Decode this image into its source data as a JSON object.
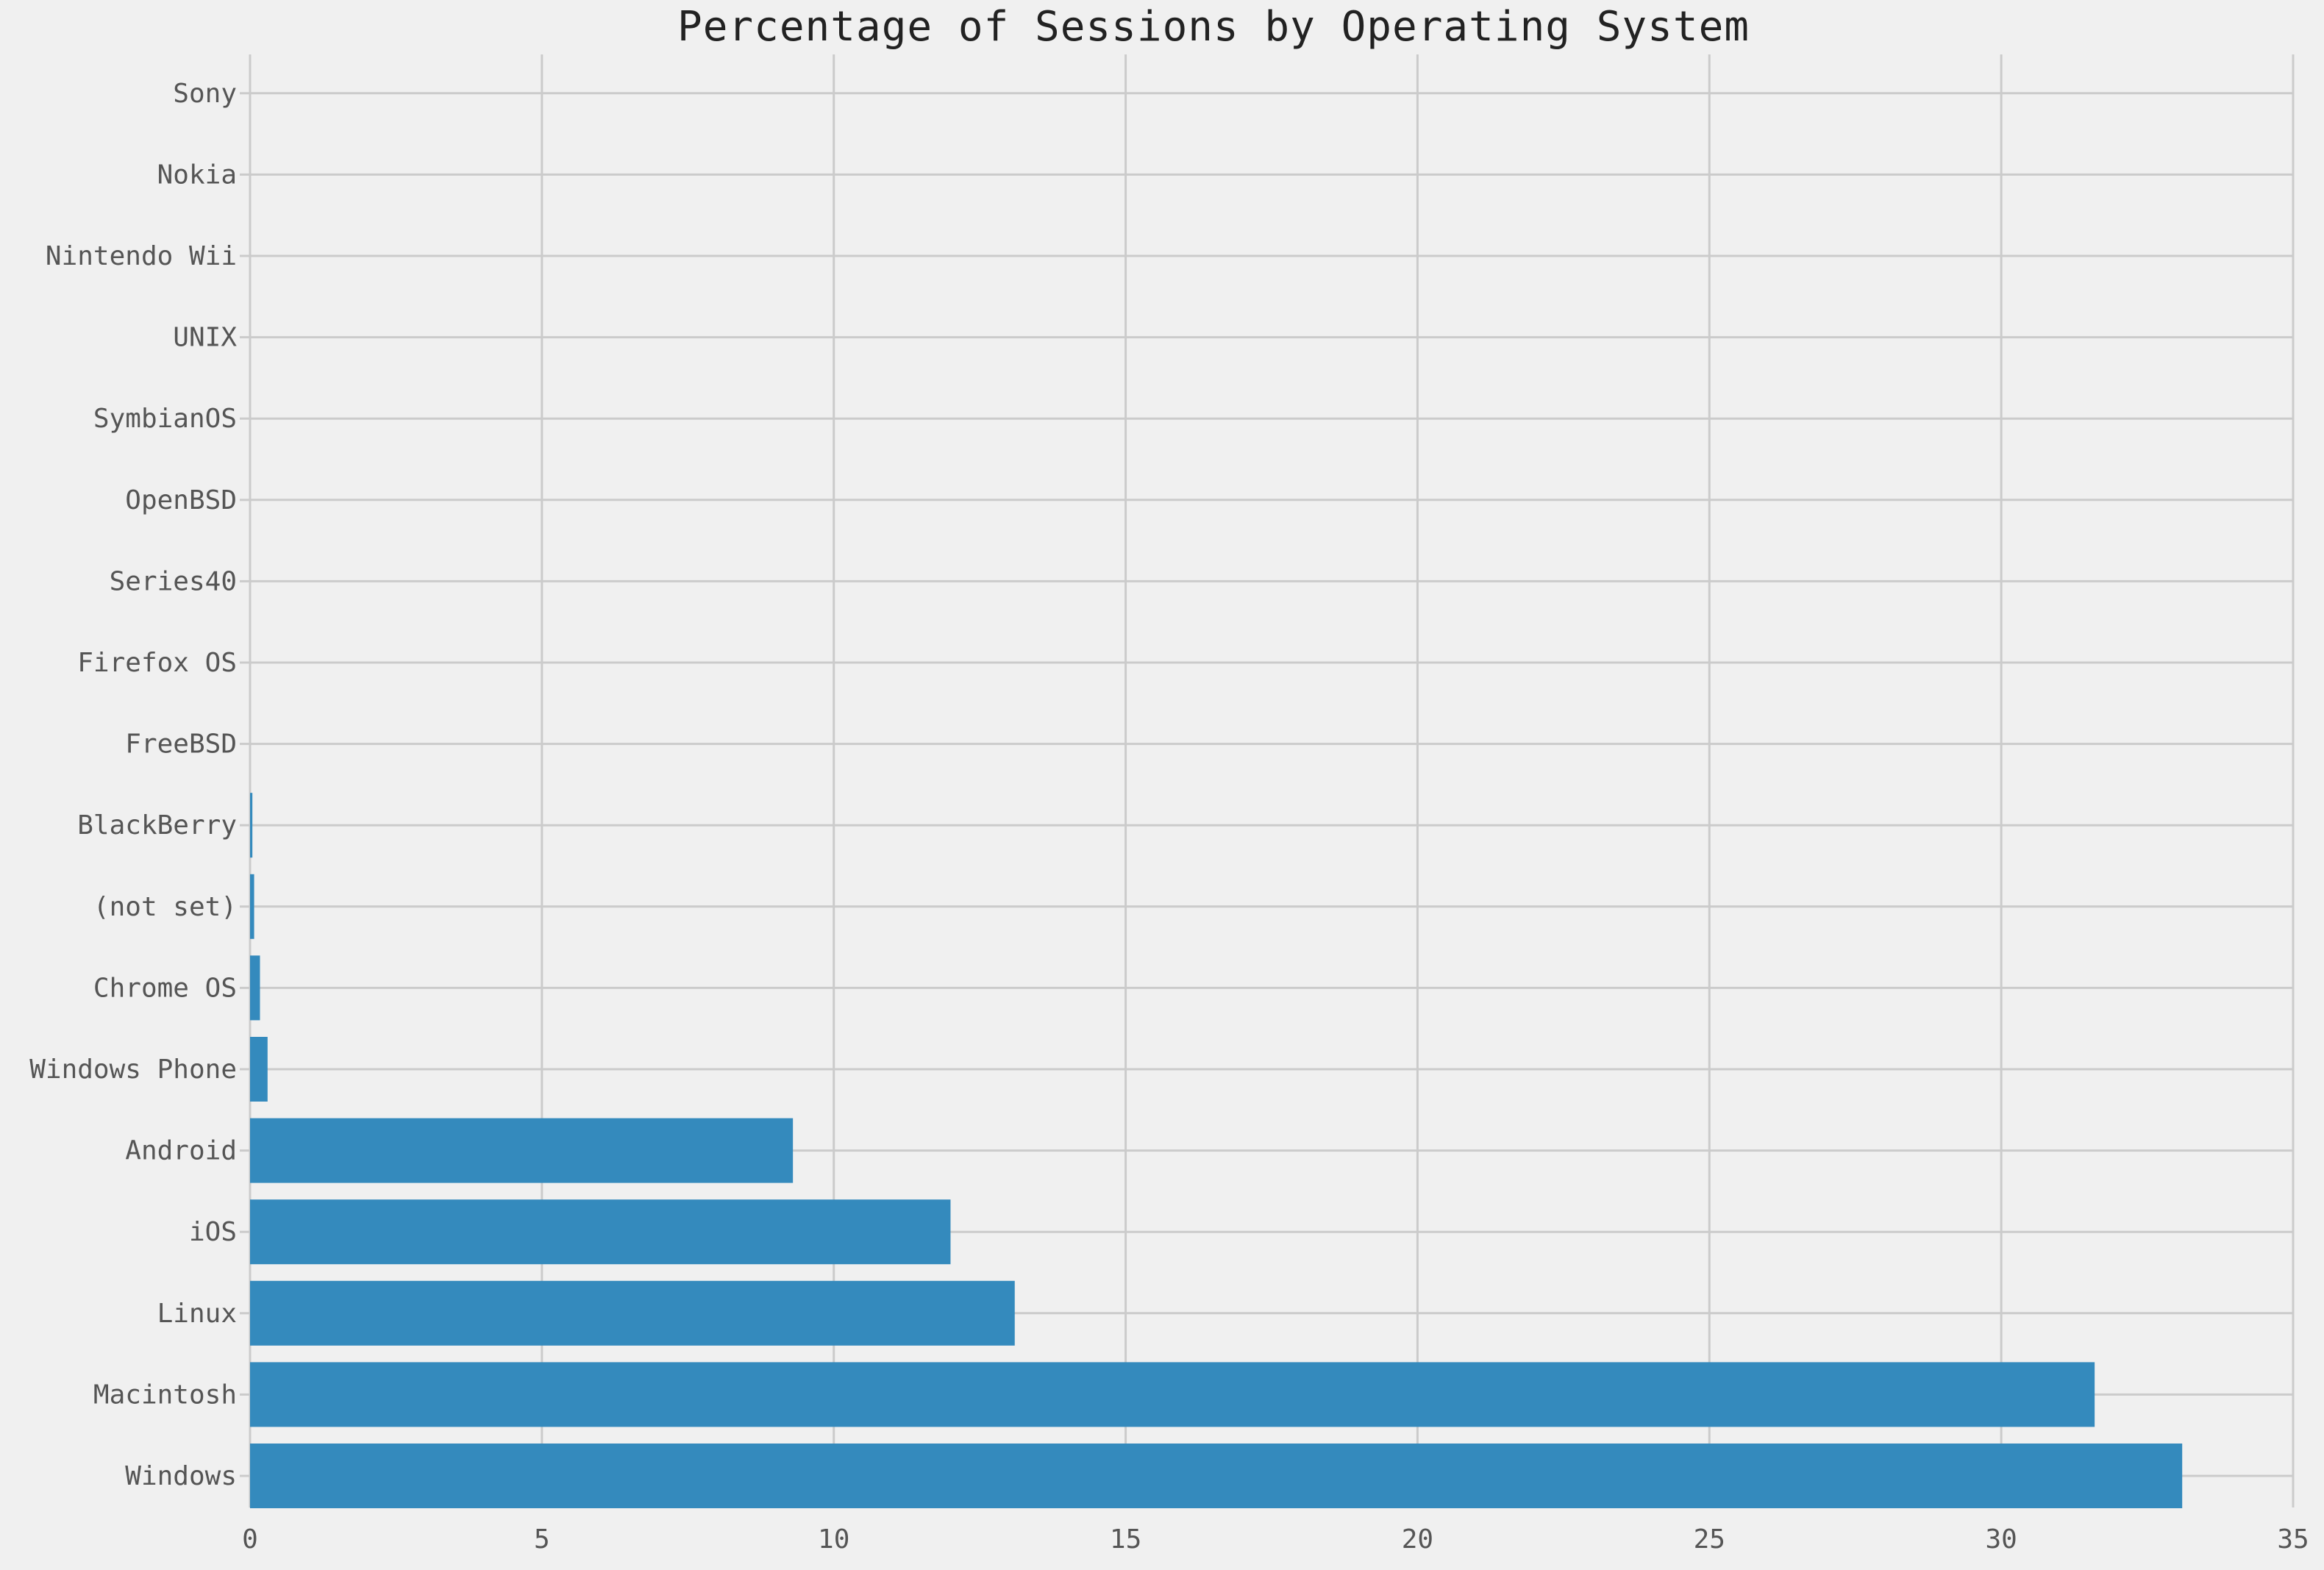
{
  "chart_data": {
    "type": "bar",
    "orientation": "horizontal",
    "title": "Percentage of Sessions by Operating System",
    "xlabel": "",
    "ylabel": "",
    "xlim": [
      0,
      35
    ],
    "xticks": [
      0,
      5,
      10,
      15,
      20,
      25,
      30,
      35
    ],
    "grid": true,
    "legend": "none",
    "bar_color": "#348abd",
    "categories": [
      "Windows",
      "Macintosh",
      "Linux",
      "iOS",
      "Android",
      "Windows Phone",
      "Chrome OS",
      "(not set)",
      "BlackBerry",
      "FreeBSD",
      "Firefox OS",
      "Series40",
      "OpenBSD",
      "SymbianOS",
      "UNIX",
      "Nintendo Wii",
      "Nokia",
      "Sony"
    ],
    "values": [
      33.1,
      31.6,
      13.1,
      12.0,
      9.3,
      0.3,
      0.17,
      0.07,
      0.04,
      0.0,
      0.0,
      0.0,
      0.0,
      0.0,
      0.0,
      0.0,
      0.0,
      0.0
    ]
  }
}
